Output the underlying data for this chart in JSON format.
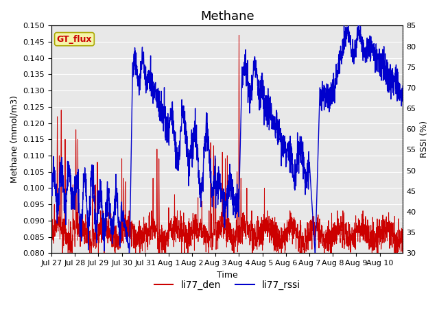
{
  "title": "Methane",
  "xlabel": "Time",
  "ylabel_left": "Methane (mmol/m3)",
  "ylabel_right": "RSSI (%)",
  "ylim_left": [
    0.08,
    0.15
  ],
  "ylim_right": [
    30,
    85
  ],
  "yticks_left": [
    0.08,
    0.085,
    0.09,
    0.095,
    0.1,
    0.105,
    0.11,
    0.115,
    0.12,
    0.125,
    0.13,
    0.135,
    0.14,
    0.145,
    0.15
  ],
  "yticks_right": [
    30,
    35,
    40,
    45,
    50,
    55,
    60,
    65,
    70,
    75,
    80,
    85
  ],
  "color_red": "#cc0000",
  "color_blue": "#0000cc",
  "bg_color": "#e8e8e8",
  "annotation_text": "GT_flux",
  "annotation_color": "#cc0000",
  "annotation_bg": "#f5f5aa",
  "annotation_border": "#aaa800",
  "legend_items": [
    "li77_den",
    "li77_rssi"
  ],
  "title_fontsize": 13,
  "label_fontsize": 9,
  "tick_fontsize": 8,
  "figsize": [
    6.4,
    4.8
  ],
  "dpi": 100
}
